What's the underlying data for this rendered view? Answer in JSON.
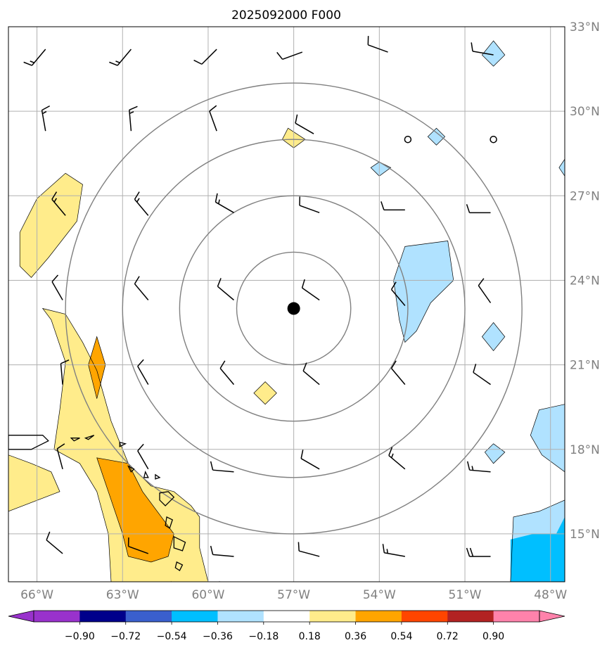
{
  "chart_data": {
    "type": "map-contour",
    "title": "2025092000 F000",
    "center": {
      "lon": -57,
      "lat": 23
    },
    "range_rings_deg": [
      2,
      4,
      6,
      8
    ],
    "lon_range": [
      -67,
      -47.5
    ],
    "lat_range": [
      13.3,
      33
    ],
    "lon_ticks": [
      -66,
      -63,
      -60,
      -57,
      -54,
      -51,
      -48
    ],
    "lon_labels": [
      "66°W",
      "63°W",
      "60°W",
      "57°W",
      "54°W",
      "51°W",
      "48°W"
    ],
    "lat_ticks": [
      15,
      18,
      21,
      24,
      27,
      30,
      33
    ],
    "lat_labels": [
      "15°N",
      "18°N",
      "21°N",
      "24°N",
      "27°N",
      "30°N",
      "33°N"
    ],
    "colorbar": {
      "levels": [
        -0.9,
        -0.72,
        -0.54,
        -0.36,
        -0.18,
        0.18,
        0.36,
        0.54,
        0.72,
        0.9
      ],
      "labels": [
        "−0.90",
        "−0.72",
        "−0.54",
        "−0.36",
        "−0.18",
        "0.18",
        "0.36",
        "0.54",
        "0.72",
        "0.90"
      ],
      "colors": [
        "#9932cc",
        "#00008b",
        "#3a5fcd",
        "#00bfff",
        "#b0e2ff",
        "#ffffff",
        "#ffec8b",
        "#ffa500",
        "#ff4500",
        "#b22222",
        "#ff82ab"
      ]
    },
    "fill_colors": {
      "light_yellow": "#ffec8b",
      "orange": "#ffa500",
      "light_blue": "#b0e2ff",
      "blue": "#00bfff"
    },
    "positive_regions": [
      {
        "level": 0.18,
        "points": [
          [
            -66.6,
            25.7
          ],
          [
            -66.0,
            26.9
          ],
          [
            -65.0,
            27.8
          ],
          [
            -64.4,
            27.4
          ],
          [
            -64.6,
            26.1
          ],
          [
            -65.6,
            24.8
          ],
          [
            -66.2,
            24.1
          ],
          [
            -66.6,
            24.5
          ]
        ]
      },
      {
        "level": 0.18,
        "points": [
          [
            -65.8,
            23.0
          ],
          [
            -65.0,
            22.8
          ],
          [
            -64.4,
            21.8
          ],
          [
            -63.9,
            20.8
          ],
          [
            -63.4,
            19.0
          ],
          [
            -62.8,
            17.5
          ],
          [
            -62.0,
            16.7
          ],
          [
            -61.2,
            16.5
          ],
          [
            -60.6,
            16.0
          ],
          [
            -60.3,
            15.6
          ],
          [
            -60.3,
            14.5
          ],
          [
            -60.0,
            13.3
          ],
          [
            -63.4,
            13.3
          ],
          [
            -63.5,
            15.0
          ],
          [
            -63.9,
            16.5
          ],
          [
            -64.5,
            17.5
          ],
          [
            -65.4,
            18.0
          ],
          [
            -65.2,
            19.4
          ],
          [
            -65.0,
            21.1
          ],
          [
            -65.5,
            22.6
          ]
        ]
      },
      {
        "level": 0.18,
        "points": [
          [
            -67,
            17.8
          ],
          [
            -66.2,
            17.5
          ],
          [
            -65.5,
            17.2
          ],
          [
            -65.2,
            16.5
          ],
          [
            -67,
            15.8
          ]
        ]
      },
      {
        "level": 0.18,
        "points": [
          [
            -57.2,
            29.4
          ],
          [
            -56.6,
            29.0
          ],
          [
            -57.0,
            28.7
          ],
          [
            -57.4,
            29.0
          ]
        ]
      },
      {
        "level": 0.18,
        "points": [
          [
            -58.0,
            20.4
          ],
          [
            -57.6,
            20.0
          ],
          [
            -58.0,
            19.6
          ],
          [
            -58.4,
            20.0
          ]
        ]
      },
      {
        "level": 0.36,
        "points": [
          [
            -63.9,
            22.0
          ],
          [
            -63.6,
            21.0
          ],
          [
            -63.9,
            19.8
          ],
          [
            -64.2,
            21.0
          ]
        ]
      },
      {
        "level": 0.36,
        "points": [
          [
            -63.9,
            17.7
          ],
          [
            -62.8,
            17.5
          ],
          [
            -62.3,
            16.5
          ],
          [
            -61.2,
            15.0
          ],
          [
            -61.4,
            14.2
          ],
          [
            -62.0,
            14.0
          ],
          [
            -62.8,
            14.2
          ],
          [
            -63.0,
            15.0
          ],
          [
            -63.5,
            16.5
          ]
        ]
      }
    ],
    "negative_regions": [
      {
        "level": -0.18,
        "points": [
          [
            -53.1,
            25.2
          ],
          [
            -51.6,
            25.4
          ],
          [
            -51.4,
            24.0
          ],
          [
            -52.2,
            23.2
          ],
          [
            -52.7,
            22.2
          ],
          [
            -53.1,
            21.8
          ],
          [
            -53.3,
            22.6
          ],
          [
            -53.5,
            24.0
          ]
        ]
      },
      {
        "level": -0.18,
        "points": [
          [
            -54.0,
            28.2
          ],
          [
            -53.6,
            28.0
          ],
          [
            -54.0,
            27.7
          ],
          [
            -54.3,
            28.0
          ]
        ]
      },
      {
        "level": -0.18,
        "points": [
          [
            -52.0,
            29.4
          ],
          [
            -51.7,
            29.1
          ],
          [
            -52.0,
            28.8
          ],
          [
            -52.3,
            29.1
          ]
        ]
      },
      {
        "level": -0.18,
        "points": [
          [
            -50.0,
            22.5
          ],
          [
            -49.6,
            22.0
          ],
          [
            -50.0,
            21.5
          ],
          [
            -50.4,
            22.0
          ]
        ]
      },
      {
        "level": -0.18,
        "points": [
          [
            -50.0,
            18.2
          ],
          [
            -49.6,
            17.9
          ],
          [
            -50.0,
            17.5
          ],
          [
            -50.3,
            17.9
          ]
        ]
      },
      {
        "level": -0.18,
        "points": [
          [
            -50.0,
            32.5
          ],
          [
            -49.6,
            32.0
          ],
          [
            -50.0,
            31.6
          ],
          [
            -50.4,
            32.0
          ]
        ]
      },
      {
        "level": -0.18,
        "points": [
          [
            -47.5,
            28.3
          ],
          [
            -47.7,
            28.0
          ],
          [
            -47.5,
            27.7
          ]
        ]
      },
      {
        "level": -0.18,
        "points": [
          [
            -47.5,
            19.6
          ],
          [
            -48.4,
            19.4
          ],
          [
            -48.7,
            18.5
          ],
          [
            -48.3,
            17.8
          ],
          [
            -47.5,
            17.2
          ]
        ]
      },
      {
        "level": -0.18,
        "points": [
          [
            -49.4,
            13.3
          ],
          [
            -49.3,
            15.6
          ],
          [
            -48.4,
            15.8
          ],
          [
            -47.5,
            16.2
          ],
          [
            -47.5,
            13.3
          ]
        ]
      },
      {
        "level": -0.36,
        "points": [
          [
            -49.4,
            13.3
          ],
          [
            -49.4,
            14.8
          ],
          [
            -48.6,
            15.0
          ],
          [
            -47.8,
            15.0
          ],
          [
            -47.5,
            15.6
          ],
          [
            -47.5,
            13.3
          ]
        ]
      }
    ],
    "wind_barbs": [
      {
        "lon": -65.7,
        "lat": 32.2,
        "dir": 220,
        "speed": 15
      },
      {
        "lon": -62.7,
        "lat": 32.2,
        "dir": 220,
        "speed": 15
      },
      {
        "lon": -59.7,
        "lat": 32.2,
        "dir": 225,
        "speed": 10
      },
      {
        "lon": -56.7,
        "lat": 32.1,
        "dir": 250,
        "speed": 10
      },
      {
        "lon": -53.7,
        "lat": 32.1,
        "dir": 290,
        "speed": 10
      },
      {
        "lon": -50.0,
        "lat": 32.0,
        "dir": 280,
        "speed": 10
      },
      {
        "lon": -65.7,
        "lat": 29.3,
        "dir": 350,
        "speed": 15
      },
      {
        "lon": -62.7,
        "lat": 29.3,
        "dir": 355,
        "speed": 15
      },
      {
        "lon": -59.7,
        "lat": 29.3,
        "dir": 340,
        "speed": 10
      },
      {
        "lon": -56.3,
        "lat": 29.2,
        "dir": 300,
        "speed": 10
      },
      {
        "lon": -65.0,
        "lat": 26.3,
        "dir": 320,
        "speed": 15
      },
      {
        "lon": -62.1,
        "lat": 26.3,
        "dir": 320,
        "speed": 15
      },
      {
        "lon": -59.1,
        "lat": 26.4,
        "dir": 300,
        "speed": 15
      },
      {
        "lon": -56.1,
        "lat": 26.4,
        "dir": 290,
        "speed": 10
      },
      {
        "lon": -53.1,
        "lat": 26.5,
        "dir": 270,
        "speed": 10
      },
      {
        "lon": -50.1,
        "lat": 26.4,
        "dir": 270,
        "speed": 10
      },
      {
        "lon": -65.1,
        "lat": 23.3,
        "dir": 330,
        "speed": 10
      },
      {
        "lon": -62.1,
        "lat": 23.3,
        "dir": 320,
        "speed": 10
      },
      {
        "lon": -59.1,
        "lat": 23.3,
        "dir": 310,
        "speed": 10
      },
      {
        "lon": -56.1,
        "lat": 23.3,
        "dir": 305,
        "speed": 10
      },
      {
        "lon": -53.1,
        "lat": 23.1,
        "dir": 320,
        "speed": 10
      },
      {
        "lon": -50.1,
        "lat": 23.2,
        "dir": 325,
        "speed": 10
      },
      {
        "lon": -65.1,
        "lat": 20.3,
        "dir": 355,
        "speed": 10
      },
      {
        "lon": -62.1,
        "lat": 20.3,
        "dir": 330,
        "speed": 10
      },
      {
        "lon": -59.1,
        "lat": 20.3,
        "dir": 320,
        "speed": 10
      },
      {
        "lon": -56.1,
        "lat": 20.3,
        "dir": 310,
        "speed": 10
      },
      {
        "lon": -53.1,
        "lat": 20.3,
        "dir": 320,
        "speed": 10
      },
      {
        "lon": -50.1,
        "lat": 20.3,
        "dir": 305,
        "speed": 10
      },
      {
        "lon": -65.1,
        "lat": 17.3,
        "dir": 345,
        "speed": 10
      },
      {
        "lon": -62.1,
        "lat": 17.3,
        "dir": 330,
        "speed": 10
      },
      {
        "lon": -59.1,
        "lat": 17.2,
        "dir": 275,
        "speed": 10
      },
      {
        "lon": -56.1,
        "lat": 17.3,
        "dir": 300,
        "speed": 10
      },
      {
        "lon": -53.1,
        "lat": 17.3,
        "dir": 310,
        "speed": 15
      },
      {
        "lon": -50.1,
        "lat": 17.2,
        "dir": 275,
        "speed": 15
      },
      {
        "lon": -65.1,
        "lat": 14.3,
        "dir": 310,
        "speed": 10
      },
      {
        "lon": -62.1,
        "lat": 14.3,
        "dir": 290,
        "speed": 10
      },
      {
        "lon": -59.1,
        "lat": 14.2,
        "dir": 275,
        "speed": 10
      },
      {
        "lon": -56.1,
        "lat": 14.2,
        "dir": 285,
        "speed": 10
      },
      {
        "lon": -53.1,
        "lat": 14.2,
        "dir": 280,
        "speed": 15
      },
      {
        "lon": -50.1,
        "lat": 14.2,
        "dir": 270,
        "speed": 20
      }
    ],
    "calm_points": [
      [
        -53.0,
        29.0
      ],
      [
        -50.0,
        29.0
      ]
    ],
    "islands": [
      [
        [
          -67,
          18.5
        ],
        [
          -65.8,
          18.5
        ],
        [
          -65.6,
          18.3
        ],
        [
          -66.2,
          18.0
        ],
        [
          -67,
          18.0
        ]
      ],
      [
        [
          -64.8,
          18.4
        ],
        [
          -64.5,
          18.4
        ],
        [
          -64.7,
          18.3
        ]
      ],
      [
        [
          -64.3,
          18.4
        ],
        [
          -64.0,
          18.5
        ],
        [
          -64.2,
          18.35
        ]
      ],
      [
        [
          -63.1,
          18.25
        ],
        [
          -62.9,
          18.2
        ],
        [
          -63.1,
          18.1
        ]
      ],
      [
        [
          -62.8,
          17.4
        ],
        [
          -62.6,
          17.3
        ],
        [
          -62.7,
          17.2
        ]
      ],
      [
        [
          -62.2,
          17.2
        ],
        [
          -62.1,
          17.0
        ],
        [
          -62.25,
          17.0
        ]
      ],
      [
        [
          -61.85,
          17.1
        ],
        [
          -61.7,
          17.0
        ],
        [
          -61.85,
          16.95
        ]
      ],
      [
        [
          -61.7,
          16.45
        ],
        [
          -61.4,
          16.5
        ],
        [
          -61.2,
          16.3
        ],
        [
          -61.5,
          16.0
        ],
        [
          -61.7,
          16.2
        ]
      ],
      [
        [
          -61.45,
          15.6
        ],
        [
          -61.25,
          15.5
        ],
        [
          -61.35,
          15.2
        ],
        [
          -61.5,
          15.3
        ]
      ],
      [
        [
          -61.2,
          14.9
        ],
        [
          -60.8,
          14.7
        ],
        [
          -60.9,
          14.4
        ],
        [
          -61.2,
          14.5
        ]
      ],
      [
        [
          -61.1,
          14.0
        ],
        [
          -60.9,
          13.9
        ],
        [
          -61.0,
          13.7
        ],
        [
          -61.15,
          13.8
        ]
      ],
      [
        [
          -61.3,
          13.3
        ],
        [
          -61.2,
          13.25
        ],
        [
          -61.35,
          13.25
        ]
      ],
      [
        [
          -59.6,
          13.3
        ],
        [
          -59.4,
          13.2
        ],
        [
          -59.65,
          13.15
        ]
      ]
    ]
  }
}
